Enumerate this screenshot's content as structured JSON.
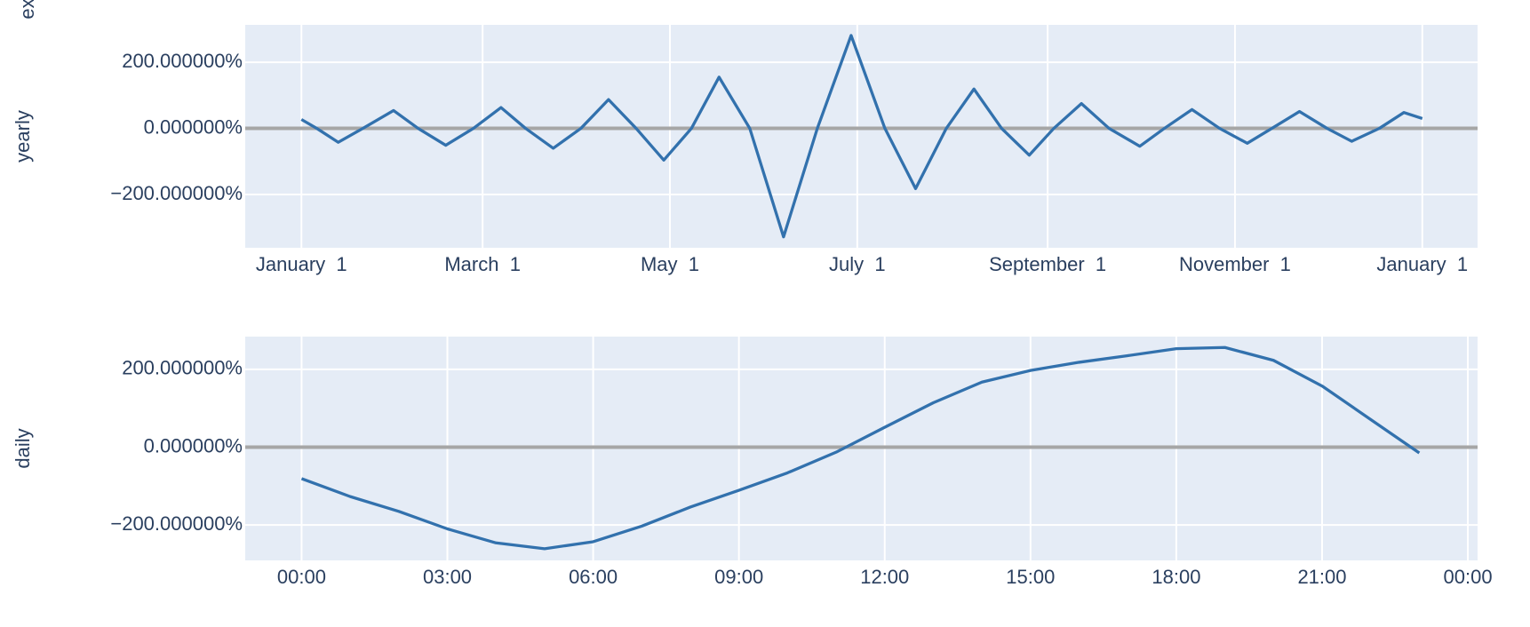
{
  "partial_label": "ex",
  "chart_data": [
    {
      "type": "line",
      "y_label": "yearly",
      "x": [
        0,
        5,
        12,
        20,
        30,
        38,
        47,
        56,
        65,
        73,
        82,
        91,
        100,
        109,
        118,
        127,
        136,
        146,
        157,
        168,
        179,
        190,
        200,
        210,
        219,
        228,
        237,
        245,
        254,
        263,
        273,
        281,
        290,
        299,
        308,
        316,
        325,
        334,
        342,
        351,
        359,
        365
      ],
      "series": [
        {
          "color": "#3271ad",
          "values": [
            27,
            0,
            -42,
            0,
            54,
            0,
            -51,
            0,
            63,
            0,
            -60,
            0,
            87,
            0,
            -96,
            0,
            155,
            0,
            -328,
            0,
            281,
            0,
            -182,
            0,
            119,
            0,
            -81,
            0,
            75,
            0,
            -54,
            0,
            57,
            0,
            -45,
            0,
            51,
            0,
            -39,
            0,
            48,
            30
          ]
        }
      ],
      "xlim": [
        -18.3,
        383
      ],
      "xticks": [
        {
          "value": 0,
          "label": "January  1"
        },
        {
          "value": 59,
          "label": "March  1"
        },
        {
          "value": 120,
          "label": "May  1"
        },
        {
          "value": 181,
          "label": "July  1"
        },
        {
          "value": 243,
          "label": "September  1"
        },
        {
          "value": 304,
          "label": "November  1"
        },
        {
          "value": 365,
          "label": "January  1"
        }
      ],
      "ylim": [
        -361,
        313
      ],
      "yticks": [
        {
          "value": -200,
          "label": "−200.000000%"
        },
        {
          "value": 0,
          "label": "0.000000%"
        },
        {
          "value": 200,
          "label": "200.000000%"
        }
      ],
      "grid": true
    },
    {
      "type": "line",
      "y_label": "daily",
      "x": [
        0,
        1,
        2,
        3,
        4,
        5,
        6,
        7,
        8,
        9,
        10,
        11,
        12,
        13,
        14,
        15,
        16,
        17,
        18,
        19,
        20,
        21,
        22,
        23
      ],
      "series": [
        {
          "color": "#3271ad",
          "values": [
            -81,
            -127,
            -165,
            -210,
            -246,
            -261,
            -243,
            -203,
            -154,
            -111,
            -66,
            -13,
            51,
            114,
            167,
            197,
            218,
            235,
            253,
            256,
            223,
            157,
            71,
            -15
          ]
        }
      ],
      "xlim": [
        -1.16,
        24.2
      ],
      "xticks": [
        {
          "value": 0,
          "label": "00:00"
        },
        {
          "value": 3,
          "label": "03:00"
        },
        {
          "value": 6,
          "label": "06:00"
        },
        {
          "value": 9,
          "label": "09:00"
        },
        {
          "value": 12,
          "label": "12:00"
        },
        {
          "value": 15,
          "label": "15:00"
        },
        {
          "value": 18,
          "label": "18:00"
        },
        {
          "value": 21,
          "label": "21:00"
        },
        {
          "value": 24,
          "label": "00:00"
        }
      ],
      "ylim": [
        -291,
        284
      ],
      "yticks": [
        {
          "value": -200,
          "label": "−200.000000%"
        },
        {
          "value": 0,
          "label": "0.000000%"
        },
        {
          "value": 200,
          "label": "200.000000%"
        }
      ],
      "grid": true
    }
  ]
}
